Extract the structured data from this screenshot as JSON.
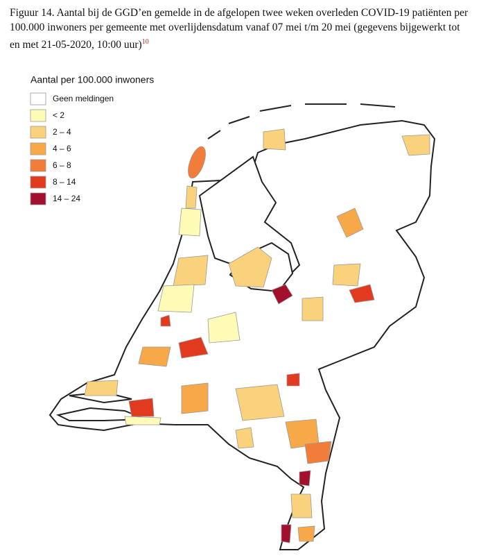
{
  "caption": {
    "text": "Figuur 14. Aantal bij de GGD’en gemelde in de afgelopen twee weken overleden COVID-19 patiënten per 100.000 inwoners per gemeente met overlijdensdatum vanaf 07 mei t/m 20 mei (gegevens bijgewerkt tot en met 21-05-2020, 10:00 uur)",
    "footnote": "10"
  },
  "legend": {
    "title": "Aantal per 100.000 inwoners",
    "items": [
      {
        "label": "Geen meldingen",
        "color": "#ffffff"
      },
      {
        "label": "< 2",
        "color": "#fdfbb6"
      },
      {
        "label": "2 – 4",
        "color": "#fbd27c"
      },
      {
        "label": "4 – 6",
        "color": "#f7a94a"
      },
      {
        "label": "6 – 8",
        "color": "#f27c3a"
      },
      {
        "label": "8 – 14",
        "color": "#e23a1f"
      },
      {
        "label": "14 – 24",
        "color": "#a3102d"
      }
    ]
  }
}
